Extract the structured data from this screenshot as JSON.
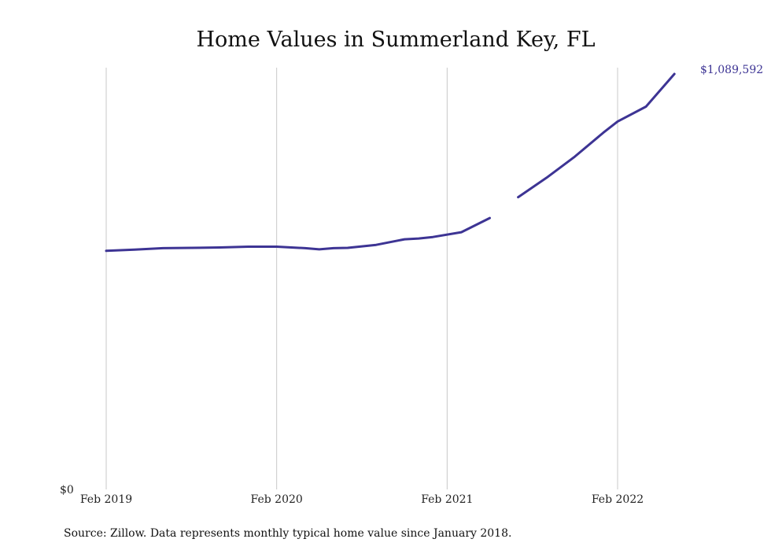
{
  "chart_data": {
    "type": "line",
    "title": "Home Values in Summerland Key, FL",
    "source": "Source: Zillow. Data represents monthly typical home value since January 2018.",
    "y_tick_label": "$0",
    "end_label": "$1,089,592",
    "x_ticks": [
      "Feb 2019",
      "Feb 2020",
      "Feb 2021",
      "Feb 2022"
    ],
    "ylim": [
      0,
      1089592
    ],
    "grid": "vertical",
    "colors": {
      "line": "#3d3494",
      "grid": "#c8c8c8",
      "end_label": "#3d3494"
    },
    "series": [
      {
        "segments": [
          {
            "points": [
              [
                "Feb 2019",
                615000
              ],
              [
                "Apr 2019",
                618000
              ],
              [
                "Jun 2019",
                622000
              ],
              [
                "Aug 2019",
                623000
              ],
              [
                "Oct 2019",
                624000
              ],
              [
                "Dec 2019",
                626000
              ],
              [
                "Feb 2020",
                626000
              ],
              [
                "Apr 2020",
                622000
              ],
              [
                "May 2020",
                619000
              ],
              [
                "Jun 2020",
                622000
              ],
              [
                "Jul 2020",
                623000
              ],
              [
                "Sep 2020",
                631000
              ],
              [
                "Nov 2020",
                646000
              ],
              [
                "Dec 2020",
                648000
              ],
              [
                "Jan 2021",
                652000
              ],
              [
                "Mar 2021",
                665000
              ],
              [
                "May 2021",
                703000
              ]
            ]
          },
          {
            "points": [
              [
                "Jul 2021",
                759000
              ],
              [
                "Sep 2021",
                811000
              ],
              [
                "Nov 2021",
                868000
              ],
              [
                "Jan 2022",
                932000
              ],
              [
                "Feb 2022",
                962000
              ],
              [
                "Apr 2022",
                1002000
              ],
              [
                "Jun 2022",
                1089592
              ]
            ]
          }
        ]
      }
    ]
  }
}
